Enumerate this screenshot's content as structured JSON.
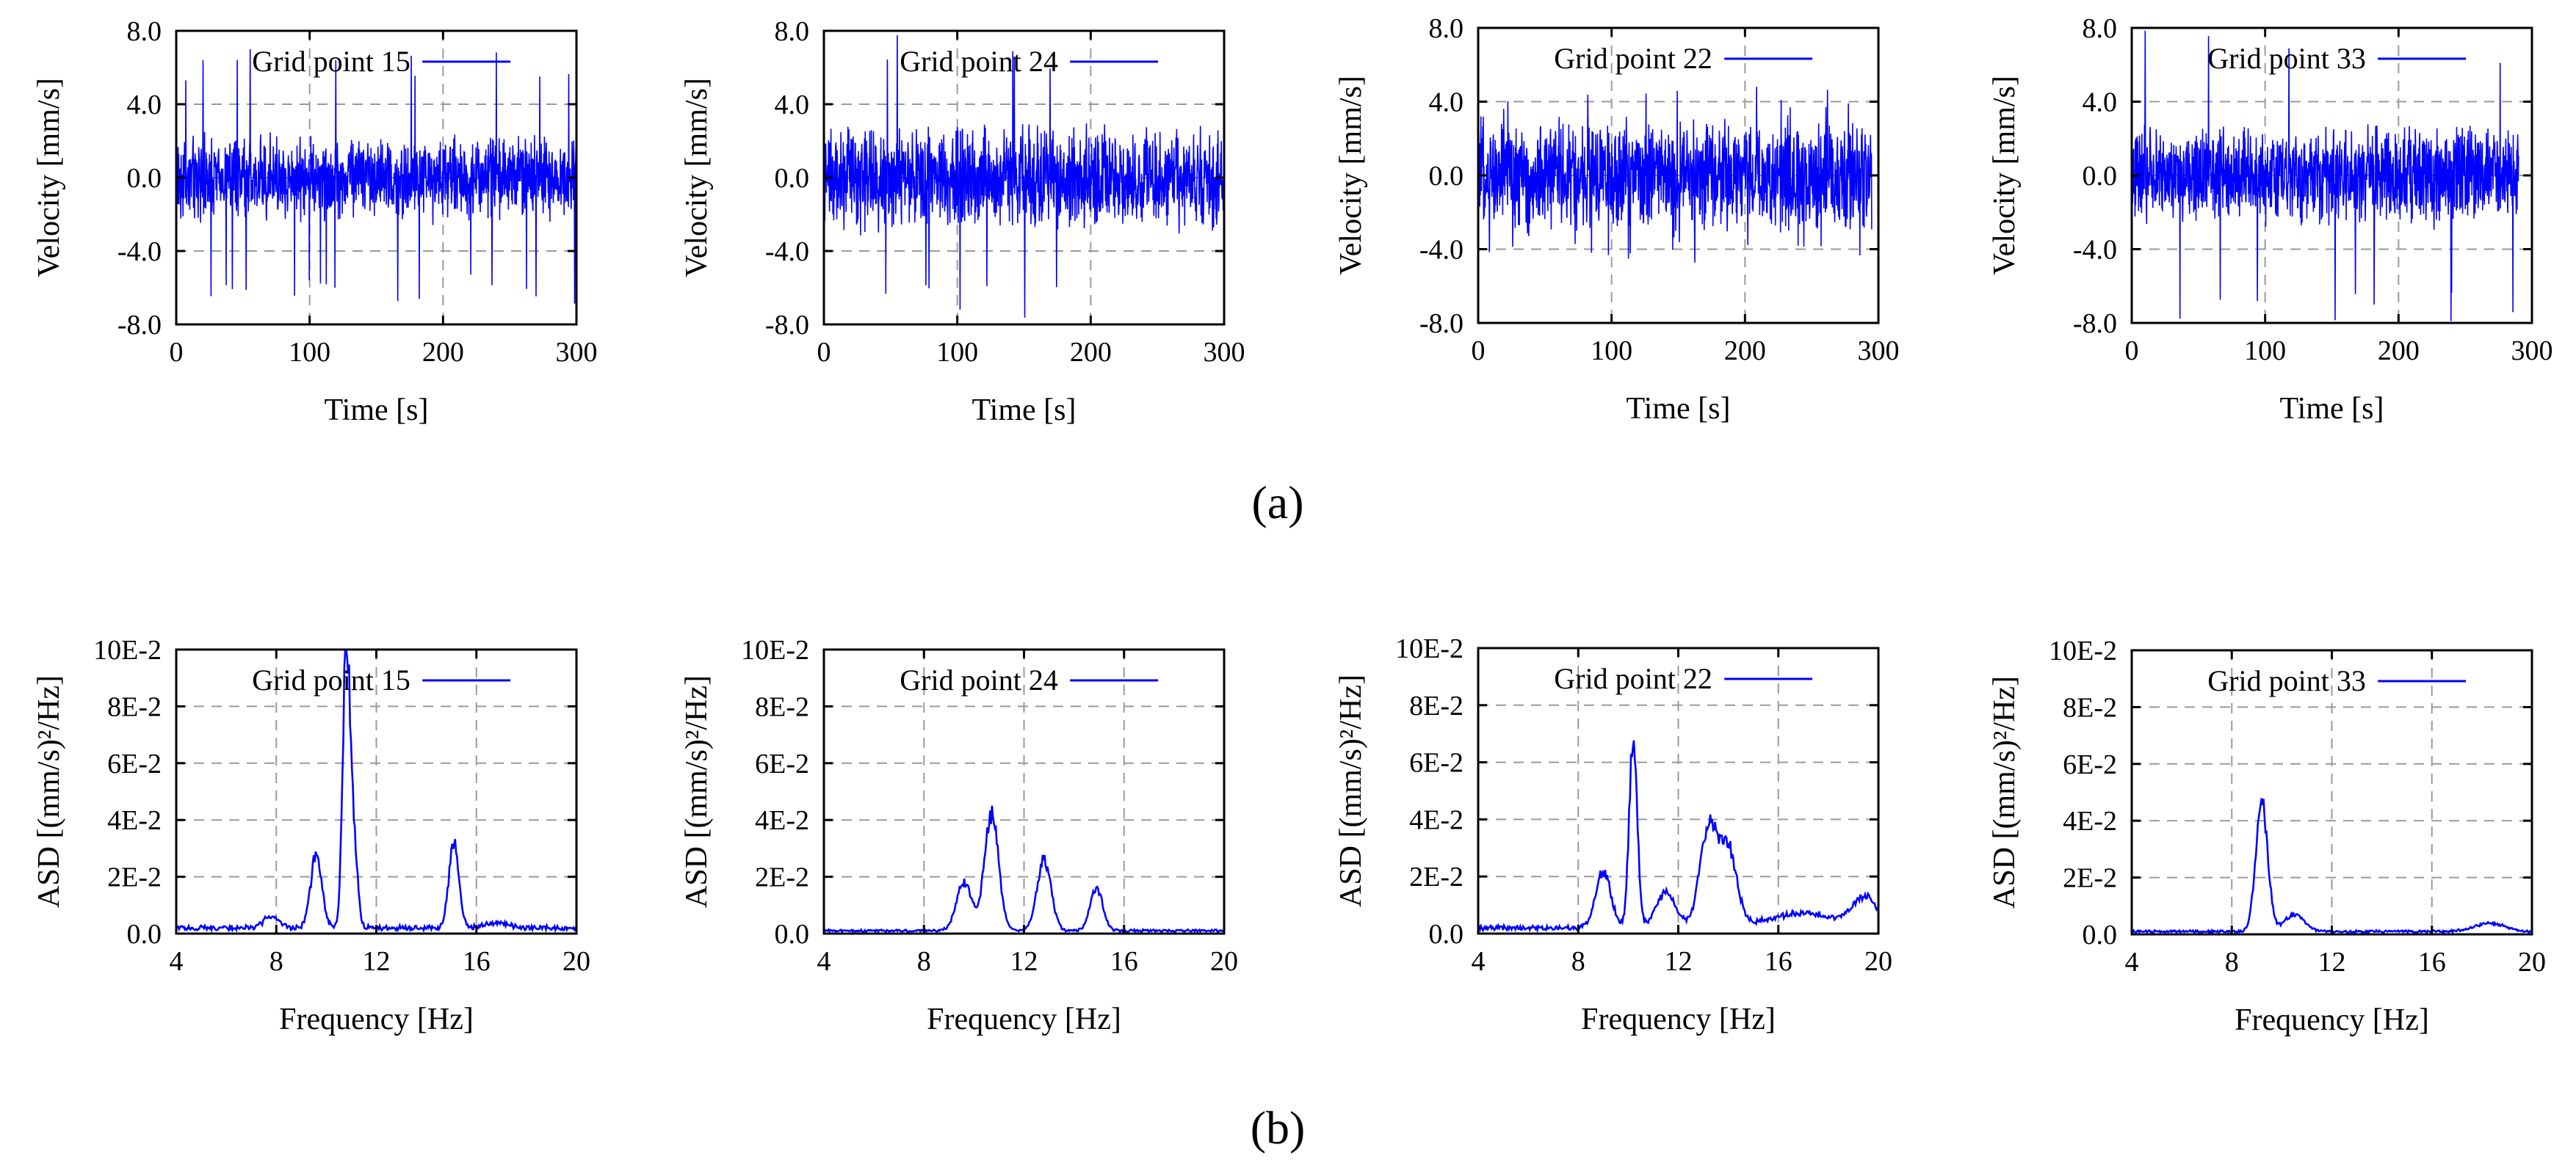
{
  "figure_labels": {
    "a": "(a)",
    "b": "(b)"
  },
  "chart_data": [
    {
      "type": "line",
      "row": "a",
      "title": "",
      "legend": "Grid point 15",
      "xlabel": "Time [s]",
      "ylabel": "Velocity [mm/s]",
      "xlim": [
        0,
        300
      ],
      "ylim": [
        -8,
        8
      ],
      "xticks": [
        0,
        100,
        200,
        300
      ],
      "xtick_labels": [
        "0",
        "100",
        "200",
        "300"
      ],
      "yticks": [
        -8,
        -4,
        0,
        4,
        8
      ],
      "ytick_labels": [
        "-8.0",
        "-4.0",
        "0.0",
        "4.0",
        "8.0"
      ],
      "series_color": "#0000ff",
      "series": [
        {
          "name": "Grid point 15",
          "x_range": [
            0,
            300
          ],
          "amplitude_typical": 2.6,
          "amplitude_peak": 7.0
        }
      ]
    },
    {
      "type": "line",
      "row": "a",
      "title": "",
      "legend": "Grid point 24",
      "xlabel": "Time [s]",
      "ylabel": "Velocity [mm/s]",
      "xlim": [
        0,
        300
      ],
      "ylim": [
        -8,
        8
      ],
      "xticks": [
        0,
        100,
        200,
        300
      ],
      "xtick_labels": [
        "0",
        "100",
        "200",
        "300"
      ],
      "yticks": [
        -8,
        -4,
        0,
        4,
        8
      ],
      "ytick_labels": [
        "-8.0",
        "-4.0",
        "0.0",
        "4.0",
        "8.0"
      ],
      "series_color": "#0000ff",
      "series": [
        {
          "name": "Grid point 24",
          "x_range": [
            0,
            300
          ],
          "amplitude_typical": 3.2,
          "amplitude_peak": 7.8
        }
      ]
    },
    {
      "type": "line",
      "row": "a",
      "title": "",
      "legend": "Grid point 22",
      "xlabel": "Time [s]",
      "ylabel": "Velocity [mm/s]",
      "xlim": [
        0,
        300
      ],
      "ylim": [
        -8,
        8
      ],
      "xticks": [
        0,
        100,
        200,
        300
      ],
      "xtick_labels": [
        "0",
        "100",
        "200",
        "300"
      ],
      "yticks": [
        -8,
        -4,
        0,
        4,
        8
      ],
      "ytick_labels": [
        "-8.0",
        "-4.0",
        "0.0",
        "4.0",
        "8.0"
      ],
      "series_color": "#0000ff",
      "series": [
        {
          "name": "Grid point 22",
          "x_range": [
            0,
            295
          ],
          "amplitude_typical": 3.4,
          "amplitude_peak": 4.8
        }
      ]
    },
    {
      "type": "line",
      "row": "a",
      "title": "",
      "legend": "Grid point 33",
      "xlabel": "Time [s]",
      "ylabel": "Velocity [mm/s]",
      "xlim": [
        0,
        300
      ],
      "ylim": [
        -8,
        8
      ],
      "xticks": [
        0,
        100,
        200,
        300
      ],
      "xtick_labels": [
        "0",
        "100",
        "200",
        "300"
      ],
      "yticks": [
        -8,
        -4,
        0,
        4,
        8
      ],
      "ytick_labels": [
        "-8.0",
        "-4.0",
        "0.0",
        "4.0",
        "8.0"
      ],
      "series_color": "#0000ff",
      "series": [
        {
          "name": "Grid point 33",
          "x_range": [
            0,
            290
          ],
          "amplitude_typical": 3.0,
          "amplitude_peak": 8.0
        }
      ]
    },
    {
      "type": "line",
      "row": "b",
      "title": "",
      "legend": "Grid point 15",
      "xlabel": "Frequency [Hz]",
      "ylabel": "ASD [(mm/s)²/Hz]",
      "xlim": [
        4,
        20
      ],
      "ylim": [
        0,
        0.1
      ],
      "xticks": [
        4,
        8,
        12,
        16,
        20
      ],
      "xtick_labels": [
        "4",
        "8",
        "12",
        "16",
        "20"
      ],
      "yticks": [
        0,
        0.02,
        0.04,
        0.06,
        0.08,
        0.1
      ],
      "ytick_labels": [
        "0.0",
        "2E-2",
        "4E-2",
        "6E-2",
        "8E-2",
        "10E-2"
      ],
      "series_color": "#0000ff",
      "series": [
        {
          "name": "Grid point 15",
          "baseline": 0.002,
          "peaks": [
            {
              "freq": 7.8,
              "value": 0.004,
              "width": 0.3
            },
            {
              "freq": 9.6,
              "value": 0.026,
              "width": 0.22
            },
            {
              "freq": 10.8,
              "value": 0.1,
              "width": 0.14
            },
            {
              "freq": 11.1,
              "value": 0.03,
              "width": 0.15
            },
            {
              "freq": 15.1,
              "value": 0.03,
              "width": 0.2
            },
            {
              "freq": 16.8,
              "value": 0.002,
              "width": 0.4
            }
          ]
        }
      ]
    },
    {
      "type": "line",
      "row": "b",
      "title": "",
      "legend": "Grid point 24",
      "xlabel": "Frequency [Hz]",
      "ylabel": "ASD [(mm/s)²/Hz]",
      "xlim": [
        4,
        20
      ],
      "ylim": [
        0,
        0.1
      ],
      "xticks": [
        4,
        8,
        12,
        16,
        20
      ],
      "xtick_labels": [
        "4",
        "8",
        "12",
        "16",
        "20"
      ],
      "yticks": [
        0,
        0.02,
        0.04,
        0.06,
        0.08,
        0.1
      ],
      "ytick_labels": [
        "0.0",
        "2E-2",
        "4E-2",
        "6E-2",
        "8E-2",
        "10E-2"
      ],
      "series_color": "#0000ff",
      "series": [
        {
          "name": "Grid point 24",
          "baseline": 0.001,
          "peaks": [
            {
              "freq": 9.6,
              "value": 0.017,
              "width": 0.3
            },
            {
              "freq": 10.7,
              "value": 0.041,
              "width": 0.28
            },
            {
              "freq": 12.8,
              "value": 0.025,
              "width": 0.28
            },
            {
              "freq": 14.9,
              "value": 0.015,
              "width": 0.25
            }
          ]
        }
      ]
    },
    {
      "type": "line",
      "row": "b",
      "title": "",
      "legend": "Grid point 22",
      "xlabel": "Frequency [Hz]",
      "ylabel": "ASD [(mm/s)²/Hz]",
      "xlim": [
        4,
        20
      ],
      "ylim": [
        0,
        0.1
      ],
      "xticks": [
        4,
        8,
        12,
        16,
        20
      ],
      "xtick_labels": [
        "4",
        "8",
        "12",
        "16",
        "20"
      ],
      "yticks": [
        0,
        0.02,
        0.04,
        0.06,
        0.08,
        0.1
      ],
      "ytick_labels": [
        "0.0",
        "2E-2",
        "4E-2",
        "6E-2",
        "8E-2",
        "10E-2"
      ],
      "series_color": "#0000ff",
      "series": [
        {
          "name": "Grid point 22",
          "baseline": 0.002,
          "peaks": [
            {
              "freq": 9.0,
              "value": 0.02,
              "width": 0.3
            },
            {
              "freq": 10.2,
              "value": 0.068,
              "width": 0.16
            },
            {
              "freq": 11.5,
              "value": 0.012,
              "width": 0.4
            },
            {
              "freq": 13.2,
              "value": 0.035,
              "width": 0.35
            },
            {
              "freq": 14.0,
              "value": 0.026,
              "width": 0.35
            },
            {
              "freq": 17.0,
              "value": 0.005,
              "width": 1.4
            },
            {
              "freq": 19.5,
              "value": 0.01,
              "width": 0.5
            }
          ]
        }
      ]
    },
    {
      "type": "line",
      "row": "b",
      "title": "",
      "legend": "Grid point 33",
      "xlabel": "Frequency [Hz]",
      "ylabel": "ASD [(mm/s)²/Hz]",
      "xlim": [
        4,
        20
      ],
      "ylim": [
        0,
        0.1
      ],
      "xticks": [
        4,
        8,
        12,
        16,
        20
      ],
      "xtick_labels": [
        "4",
        "8",
        "12",
        "16",
        "20"
      ],
      "yticks": [
        0,
        0.02,
        0.04,
        0.06,
        0.08,
        0.1
      ],
      "ytick_labels": [
        "0.0",
        "2E-2",
        "4E-2",
        "6E-2",
        "8E-2",
        "10E-2"
      ],
      "series_color": "#0000ff",
      "series": [
        {
          "name": "Grid point 33",
          "baseline": 0.001,
          "peaks": [
            {
              "freq": 9.2,
              "value": 0.045,
              "width": 0.24
            },
            {
              "freq": 10.5,
              "value": 0.006,
              "width": 0.4
            },
            {
              "freq": 18.3,
              "value": 0.003,
              "width": 0.6
            }
          ]
        }
      ]
    }
  ]
}
